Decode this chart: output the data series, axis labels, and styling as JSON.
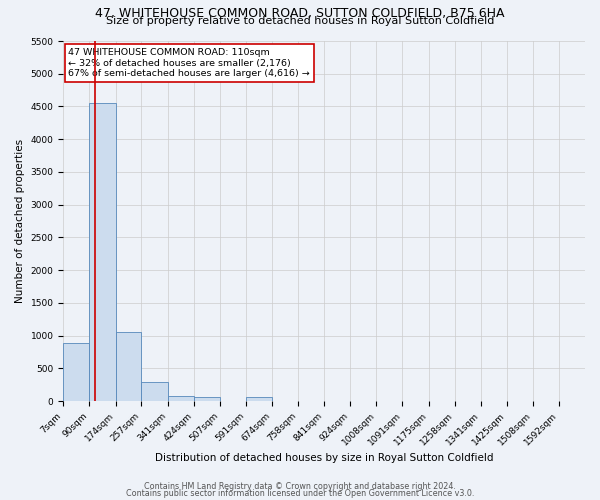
{
  "title": "47, WHITEHOUSE COMMON ROAD, SUTTON COLDFIELD, B75 6HA",
  "subtitle": "Size of property relative to detached houses in Royal Sutton Coldfield",
  "xlabel": "Distribution of detached houses by size in Royal Sutton Coldfield",
  "ylabel": "Number of detached properties",
  "footer1": "Contains HM Land Registry data © Crown copyright and database right 2024.",
  "footer2": "Contains public sector information licensed under the Open Government Licence v3.0.",
  "annotation_title": "47 WHITEHOUSE COMMON ROAD: 110sqm",
  "annotation_line2": "← 32% of detached houses are smaller (2,176)",
  "annotation_line3": "67% of semi-detached houses are larger (4,616) →",
  "bar_edges": [
    7,
    90,
    174,
    257,
    341,
    424,
    507,
    591,
    674,
    758,
    841,
    924,
    1008,
    1091,
    1175,
    1258,
    1341,
    1425,
    1508,
    1592,
    1675
  ],
  "bar_heights": [
    880,
    4560,
    1060,
    290,
    80,
    55,
    0,
    55,
    0,
    0,
    0,
    0,
    0,
    0,
    0,
    0,
    0,
    0,
    0,
    0
  ],
  "bar_color": "#ccdcee",
  "bar_edgecolor": "#5588bb",
  "vline_color": "#cc0000",
  "vline_x": 110,
  "ylim": [
    0,
    5500
  ],
  "yticks": [
    0,
    500,
    1000,
    1500,
    2000,
    2500,
    3000,
    3500,
    4000,
    4500,
    5000,
    5500
  ],
  "grid_color": "#cccccc",
  "bg_color": "#eef2f8",
  "annotation_box_color": "#ffffff",
  "annotation_border_color": "#cc0000",
  "title_fontsize": 9,
  "subtitle_fontsize": 8,
  "tick_fontsize": 6.5,
  "label_fontsize": 7.5,
  "annotation_fontsize": 6.8,
  "footer_fontsize": 5.8
}
